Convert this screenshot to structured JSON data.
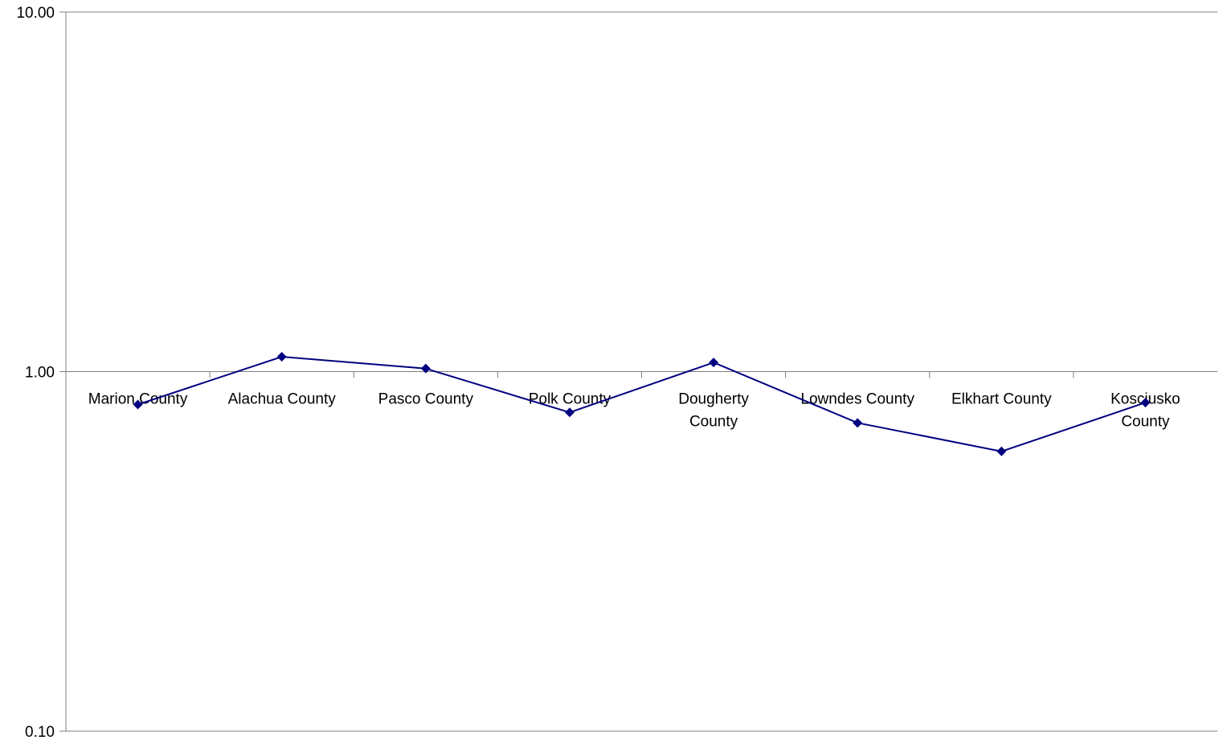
{
  "chart_data": {
    "type": "line",
    "title": "",
    "xlabel": "",
    "ylabel": "",
    "yscale": "log",
    "ylim": [
      0.1,
      10
    ],
    "ytick_labels": [
      "10.00",
      "1.00",
      "0.10"
    ],
    "ytick_values": [
      10,
      1,
      0.1
    ],
    "grid": false,
    "legend": "none",
    "categories": [
      [
        "Marion County"
      ],
      [
        "Alachua County"
      ],
      [
        "Pasco County"
      ],
      [
        "Polk County"
      ],
      [
        "Dougherty",
        "County"
      ],
      [
        "Lowndes County"
      ],
      [
        "Elkhart County"
      ],
      [
        "Kosciusko",
        "County"
      ]
    ],
    "series": [
      {
        "values": [
          0.81,
          1.1,
          1.02,
          0.77,
          1.06,
          0.72,
          0.6,
          0.82
        ],
        "color": "#000080",
        "marker": "diamond"
      }
    ],
    "axis_color": "#808080"
  }
}
